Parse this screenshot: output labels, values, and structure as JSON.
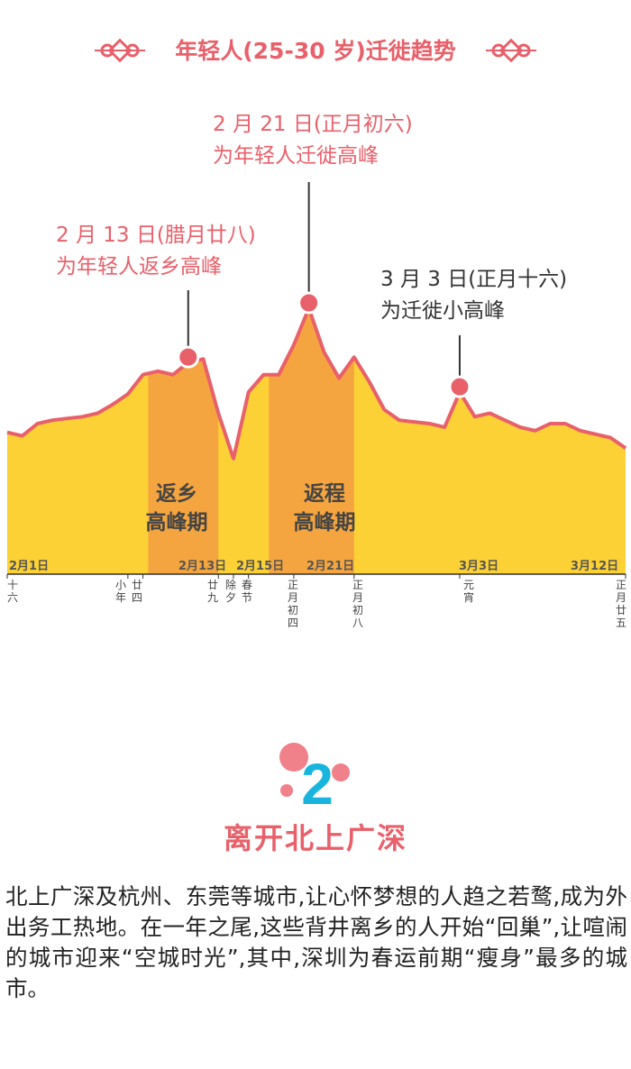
{
  "title": "年轻人(25-30 岁)迁徙趋势",
  "colors": {
    "accent": "#e8606a",
    "area": "#fcd135",
    "band": "#f4a040",
    "number": "#18b4dd"
  },
  "annotations": [
    {
      "date": "2 月 13 日(腊月廿八)",
      "text": "为年轻人返乡高峰"
    },
    {
      "date": "2 月 21 日(正月初六)",
      "text": "为年轻人迁徙高峰"
    },
    {
      "date": "3 月 3 日(正月十六)",
      "text": "为迁徙小高峰"
    }
  ],
  "bands": [
    {
      "line1": "返乡",
      "line2": "高峰期"
    },
    {
      "line1": "返程",
      "line2": "高峰期"
    }
  ],
  "x_labels": [
    "2月1日",
    "2月13日",
    "2月15日",
    "2月21日",
    "3月3日",
    "3月12日"
  ],
  "lunar_labels": [
    "十六",
    "小年",
    "廿四",
    "廿九",
    "除夕",
    "春节",
    "正月初四",
    "正月初八",
    "元宵",
    "正月廿五"
  ],
  "chart_data": {
    "type": "area",
    "title": "年轻人(25-30 岁)迁徙趋势",
    "x_range": [
      "2月1日",
      "3月14日"
    ],
    "x": [
      "2月1日",
      "2月2日",
      "2月3日",
      "2月4日",
      "2月5日",
      "2月6日",
      "2月7日",
      "2月8日",
      "2月9日",
      "2月10日",
      "2月11日",
      "2月12日",
      "2月13日",
      "2月14日",
      "2月15日",
      "2月16日",
      "2月17日",
      "2月18日",
      "2月19日",
      "2月20日",
      "2月21日",
      "2月22日",
      "2月23日",
      "2月24日",
      "2月25日",
      "2月26日",
      "2月27日",
      "2月28日",
      "3月1日",
      "3月2日",
      "3月3日",
      "3月4日",
      "3月5日",
      "3月6日",
      "3月7日",
      "3月8日",
      "3月9日",
      "3月10日",
      "3月11日",
      "3月12日",
      "3月13日",
      "3月14日"
    ],
    "values": [
      29,
      27,
      34,
      36,
      37,
      38,
      40,
      45,
      51,
      62,
      64,
      62,
      69,
      71,
      40,
      14,
      52,
      62,
      62,
      79,
      100,
      75,
      60,
      72,
      58,
      42,
      36,
      35,
      34,
      32,
      52,
      38,
      40,
      36,
      32,
      30,
      34,
      34,
      30,
      28,
      26,
      20
    ],
    "highlight_ranges": [
      [
        "2月10日",
        "2月15日"
      ],
      [
        "2月18日",
        "2月24日"
      ]
    ],
    "peaks": [
      {
        "date": "2月13日",
        "label": "为年轻人返乡高峰"
      },
      {
        "date": "2月21日",
        "label": "为年轻人迁徙高峰"
      },
      {
        "date": "3月3日",
        "label": "为迁徙小高峰"
      }
    ],
    "grid": false,
    "legend": "none"
  },
  "section2": {
    "number": "2",
    "heading": "离开北上广深",
    "paragraph": "北上广深及杭州、东莞等城市,让心怀梦想的人趋之若鹜,成为外出务工热地。在一年之尾,这些背井离乡的人开始“回巢”,让喧闹的城市迎来“空城时光”,其中,深圳为春运前期“瘦身”最多的城市。"
  }
}
